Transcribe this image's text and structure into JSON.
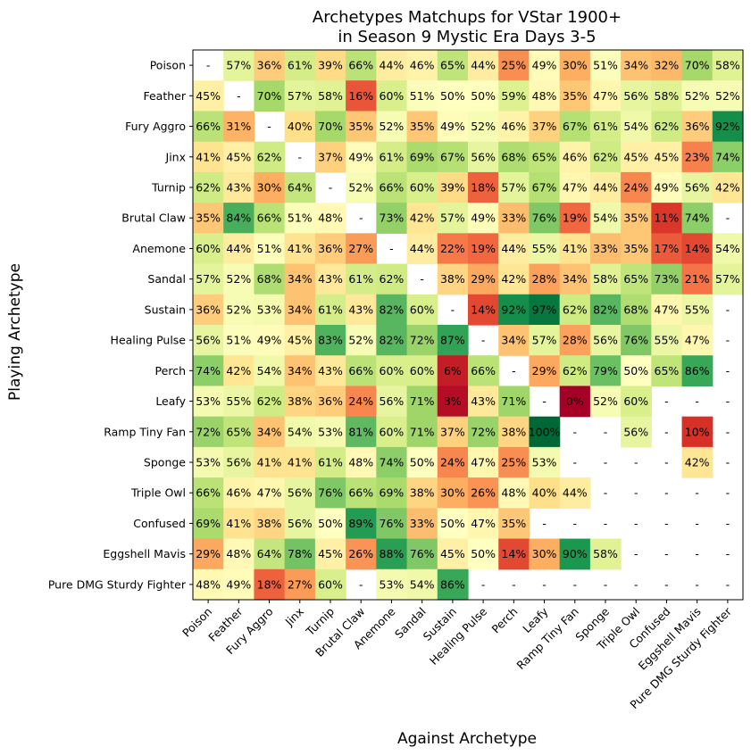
{
  "chart_data": {
    "type": "heatmap",
    "title_line1": "Archetypes Matchups for VStar 1900+",
    "title_line2": "in Season 9 Mystic Era Days 3-5",
    "xlabel": "Against Archetype",
    "ylabel": "Playing Archetype",
    "colormap": "RdYlGn",
    "value_range": [
      0,
      100
    ],
    "missing_label": "-",
    "rows": [
      "Poison",
      "Feather",
      "Fury Aggro",
      "Jinx",
      "Turnip",
      "Brutal Claw",
      "Anemone",
      "Sandal",
      "Sustain",
      "Healing Pulse",
      "Perch",
      "Leafy",
      "Ramp Tiny Fan",
      "Sponge",
      "Triple Owl",
      "Confused",
      "Eggshell Mavis",
      "Pure DMG Sturdy Fighter"
    ],
    "columns": [
      "Poison",
      "Feather",
      "Fury Aggro",
      "Jinx",
      "Turnip",
      "Brutal Claw",
      "Anemone",
      "Sandal",
      "Sustain",
      "Healing Pulse",
      "Perch",
      "Leafy",
      "Ramp Tiny Fan",
      "Sponge",
      "Triple Owl",
      "Confused",
      "Eggshell Mavis",
      "Pure DMG Sturdy Fighter"
    ],
    "values": [
      [
        null,
        57,
        36,
        61,
        39,
        66,
        44,
        46,
        65,
        44,
        25,
        49,
        30,
        51,
        34,
        32,
        70,
        58
      ],
      [
        45,
        null,
        70,
        57,
        58,
        16,
        60,
        51,
        50,
        50,
        59,
        48,
        35,
        47,
        56,
        58,
        52,
        52
      ],
      [
        66,
        31,
        null,
        40,
        70,
        35,
        52,
        35,
        49,
        52,
        46,
        37,
        67,
        61,
        54,
        62,
        36,
        92
      ],
      [
        41,
        45,
        62,
        null,
        37,
        49,
        61,
        69,
        67,
        56,
        68,
        65,
        46,
        62,
        45,
        45,
        23,
        74
      ],
      [
        62,
        43,
        30,
        64,
        null,
        52,
        66,
        60,
        39,
        18,
        57,
        67,
        47,
        44,
        24,
        49,
        56,
        42
      ],
      [
        35,
        84,
        66,
        51,
        48,
        null,
        73,
        42,
        57,
        49,
        33,
        76,
        19,
        54,
        35,
        11,
        74,
        null
      ],
      [
        60,
        44,
        51,
        41,
        36,
        27,
        null,
        44,
        22,
        19,
        44,
        55,
        41,
        33,
        35,
        17,
        14,
        54
      ],
      [
        57,
        52,
        68,
        34,
        43,
        61,
        62,
        null,
        38,
        29,
        42,
        28,
        34,
        58,
        65,
        73,
        21,
        57
      ],
      [
        36,
        52,
        53,
        34,
        61,
        43,
        82,
        60,
        null,
        14,
        92,
        97,
        62,
        82,
        68,
        47,
        55,
        null
      ],
      [
        56,
        51,
        49,
        45,
        83,
        52,
        82,
        72,
        87,
        null,
        34,
        57,
        28,
        56,
        76,
        55,
        47,
        null
      ],
      [
        74,
        42,
        54,
        34,
        43,
        66,
        60,
        60,
        6,
        66,
        null,
        29,
        62,
        79,
        50,
        65,
        86,
        null
      ],
      [
        53,
        55,
        62,
        38,
        36,
        24,
        56,
        71,
        3,
        43,
        71,
        null,
        0,
        52,
        60,
        null,
        null,
        null
      ],
      [
        72,
        65,
        34,
        54,
        53,
        81,
        60,
        71,
        37,
        72,
        38,
        100,
        null,
        null,
        56,
        null,
        10,
        null
      ],
      [
        53,
        56,
        41,
        41,
        61,
        48,
        74,
        50,
        24,
        47,
        25,
        53,
        null,
        null,
        null,
        null,
        42,
        null
      ],
      [
        66,
        46,
        47,
        56,
        76,
        66,
        69,
        38,
        30,
        26,
        48,
        40,
        44,
        null,
        null,
        null,
        null,
        null
      ],
      [
        69,
        41,
        38,
        56,
        50,
        89,
        76,
        33,
        50,
        47,
        35,
        null,
        null,
        null,
        null,
        null,
        null,
        null
      ],
      [
        29,
        48,
        64,
        78,
        45,
        26,
        88,
        76,
        45,
        50,
        14,
        30,
        90,
        58,
        null,
        null,
        null,
        null
      ],
      [
        48,
        49,
        18,
        27,
        60,
        null,
        53,
        54,
        86,
        null,
        null,
        null,
        null,
        null,
        null,
        null,
        null,
        null
      ]
    ]
  }
}
